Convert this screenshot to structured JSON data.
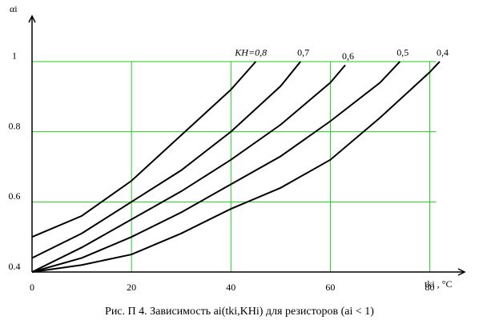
{
  "chart_data": {
    "type": "line",
    "y_label": "αi",
    "x_label": "tki , °C",
    "caption": "Рис. П 4. Зависимость ai(tki,KHi) для резисторов (ai < 1)",
    "xlim": [
      0,
      87
    ],
    "ylim": [
      0.4,
      1.13
    ],
    "xticks": [
      0,
      20,
      40,
      60,
      80
    ],
    "yticks": [
      0.4,
      0.6,
      0.8,
      1
    ],
    "grid": true,
    "grid_color": "#22cc22",
    "color": "#000000",
    "series": [
      {
        "name": "KH=0,8",
        "x": [
          0,
          10,
          20,
          30,
          40,
          45
        ],
        "values": [
          0.5,
          0.56,
          0.66,
          0.79,
          0.92,
          1.0
        ]
      },
      {
        "name": "0,7",
        "x": [
          0,
          10,
          20,
          30,
          40,
          50,
          54
        ],
        "values": [
          0.44,
          0.51,
          0.6,
          0.69,
          0.8,
          0.93,
          1.0
        ]
      },
      {
        "name": "0,6",
        "x": [
          0,
          10,
          20,
          30,
          40,
          50,
          60,
          63
        ],
        "values": [
          0.4,
          0.47,
          0.55,
          0.63,
          0.72,
          0.82,
          0.94,
          0.99
        ]
      },
      {
        "name": "0,5",
        "x": [
          0,
          10,
          20,
          30,
          40,
          50,
          60,
          70,
          74
        ],
        "values": [
          0.4,
          0.44,
          0.5,
          0.57,
          0.65,
          0.73,
          0.83,
          0.94,
          1.0
        ]
      },
      {
        "name": "0,4",
        "x": [
          0,
          10,
          20,
          30,
          40,
          50,
          60,
          70,
          80,
          82
        ],
        "values": [
          0.4,
          0.42,
          0.45,
          0.51,
          0.58,
          0.64,
          0.72,
          0.84,
          0.97,
          1.0
        ]
      }
    ]
  }
}
